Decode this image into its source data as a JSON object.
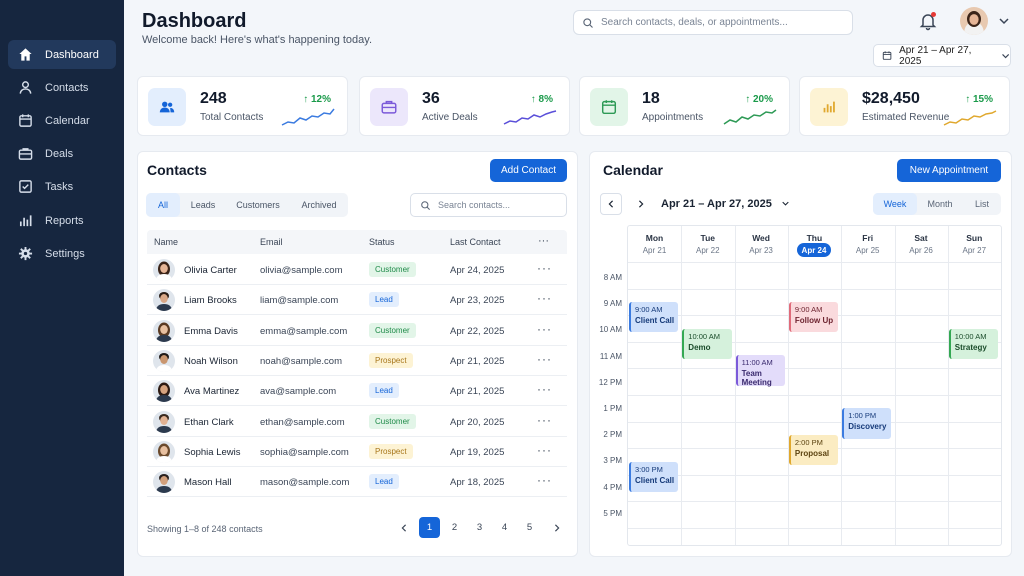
{
  "sidebar": {
    "items": [
      {
        "label": "Dashboard",
        "icon": "home-icon"
      },
      {
        "label": "Contacts",
        "icon": "user-icon"
      },
      {
        "label": "Calendar",
        "icon": "calendar-icon"
      },
      {
        "label": "Deals",
        "icon": "briefcase-icon"
      },
      {
        "label": "Tasks",
        "icon": "checkbox-icon"
      },
      {
        "label": "Reports",
        "icon": "bar-chart-icon"
      },
      {
        "label": "Settings",
        "icon": "gear-icon"
      }
    ],
    "active": "Dashboard"
  },
  "header": {
    "title": "Dashboard",
    "subtitle": "Welcome back! Here's what's happening today.",
    "search_placeholder": "Search contacts, deals, or appointments...",
    "date_range": "Apr 21 – Apr 27, 2025"
  },
  "stats": [
    {
      "value": "248",
      "label": "Total Contacts",
      "change": "↑ 12%",
      "icon": "users-icon"
    },
    {
      "value": "36",
      "label": "Active Deals",
      "change": "↑ 8%",
      "icon": "briefcase-icon"
    },
    {
      "value": "18",
      "label": "Appointments",
      "change": "↑ 20%",
      "icon": "calendar-icon"
    },
    {
      "value": "$28,450",
      "label": "Estimated Revenue",
      "change": "↑ 15%",
      "icon": "bar-chart-icon"
    }
  ],
  "contacts": {
    "title": "Contacts",
    "add_button": "Add Contact",
    "filters": [
      "All",
      "Leads",
      "Customers",
      "Archived"
    ],
    "active_filter": "All",
    "search_placeholder": "Search contacts...",
    "columns": [
      "Name",
      "Email",
      "Status",
      "Last Contact",
      "···"
    ],
    "rows": [
      {
        "name": "Olivia Carter",
        "email": "olivia@sample.com",
        "status": "Customer",
        "date": "Apr 24, 2025"
      },
      {
        "name": "Liam Brooks",
        "email": "liam@sample.com",
        "status": "Lead",
        "date": "Apr 23, 2025"
      },
      {
        "name": "Emma Davis",
        "email": "emma@sample.com",
        "status": "Customer",
        "date": "Apr 22, 2025"
      },
      {
        "name": "Noah Wilson",
        "email": "noah@sample.com",
        "status": "Prospect",
        "date": "Apr 21, 2025"
      },
      {
        "name": "Ava Martinez",
        "email": "ava@sample.com",
        "status": "Lead",
        "date": "Apr 21, 2025"
      },
      {
        "name": "Ethan Clark",
        "email": "ethan@sample.com",
        "status": "Customer",
        "date": "Apr 20, 2025"
      },
      {
        "name": "Sophia Lewis",
        "email": "sophia@sample.com",
        "status": "Prospect",
        "date": "Apr 19, 2025"
      },
      {
        "name": "Mason Hall",
        "email": "mason@sample.com",
        "status": "Lead",
        "date": "Apr 18, 2025"
      }
    ],
    "showing": "Showing 1–8 of 248 contacts",
    "pages": [
      "1",
      "2",
      "3",
      "4",
      "5"
    ],
    "current_page": "1"
  },
  "calendar": {
    "title": "Calendar",
    "new_button": "New Appointment",
    "week_label": "Apr 21 – Apr 27, 2025",
    "views": [
      "Week",
      "Month",
      "List"
    ],
    "active_view": "Week",
    "days": [
      {
        "name": "Mon",
        "date": "Apr 21"
      },
      {
        "name": "Tue",
        "date": "Apr 22"
      },
      {
        "name": "Wed",
        "date": "Apr 23"
      },
      {
        "name": "Thu",
        "date": "Apr 24"
      },
      {
        "name": "Fri",
        "date": "Apr 25"
      },
      {
        "name": "Sat",
        "date": "Apr 26"
      },
      {
        "name": "Sun",
        "date": "Apr 27"
      }
    ],
    "today": "Apr 24",
    "times": [
      "8 AM",
      "9 AM",
      "10 AM",
      "11 AM",
      "12 PM",
      "1 PM",
      "2 PM",
      "3 PM",
      "4 PM",
      "5 PM"
    ],
    "events": [
      {
        "time": "9:00 AM",
        "title": "Client Call",
        "day": "Mon",
        "color": "blue"
      },
      {
        "time": "10:00 AM",
        "title": "Demo",
        "day": "Tue",
        "color": "green"
      },
      {
        "time": "11:00 AM",
        "title": "Team Meeting",
        "day": "Wed",
        "color": "purple"
      },
      {
        "time": "9:00 AM",
        "title": "Follow Up",
        "day": "Thu",
        "color": "pink"
      },
      {
        "time": "1:00 PM",
        "title": "Discovery",
        "day": "Fri",
        "color": "blue"
      },
      {
        "time": "2:00 PM",
        "title": "Proposal",
        "day": "Thu",
        "color": "yellow"
      },
      {
        "time": "10:00 AM",
        "title": "Strategy",
        "day": "Sun",
        "color": "green"
      },
      {
        "time": "3:00 PM",
        "title": "Client Call",
        "day": "Mon",
        "color": "blue"
      }
    ]
  },
  "colors": {
    "sidebar_bg": "#16263f",
    "accent": "#1565d8",
    "positive": "#1a9a4a"
  }
}
